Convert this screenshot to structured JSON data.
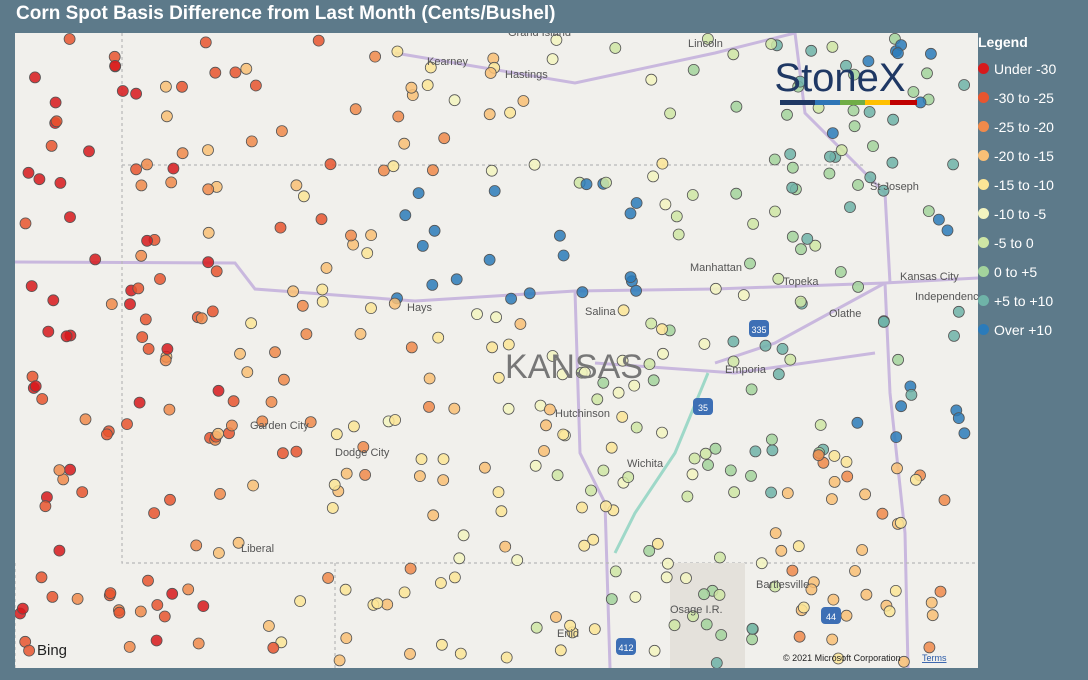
{
  "header": {
    "title": "Corn Spot Basis Difference from Last Month (Cents/Bushel)"
  },
  "legend": {
    "title": "Legend",
    "items": [
      {
        "label": "Under -30",
        "color": "#d7191c"
      },
      {
        "label": "-30 to -25",
        "color": "#e8552f"
      },
      {
        "label": "-25 to -20",
        "color": "#f08a4b"
      },
      {
        "label": "-20 to -15",
        "color": "#f9bf76"
      },
      {
        "label": "-15 to -10",
        "color": "#fbe596"
      },
      {
        "label": "-10 to -5",
        "color": "#f3f4c0"
      },
      {
        "label": "-5 to 0",
        "color": "#cfe6a5"
      },
      {
        "label": "0 to +5",
        "color": "#a3d39c"
      },
      {
        "label": "+5 to +10",
        "color": "#6fb3a8"
      },
      {
        "label": "Over +10",
        "color": "#2b7bba"
      }
    ]
  },
  "map": {
    "labels": [
      "Grand Island",
      "Kearney",
      "Hastings",
      "Lincoln",
      "St Joseph",
      "Kansas City",
      "Independence",
      "Manhattan",
      "Topeka",
      "Olathe",
      "Hays",
      "Salina",
      "KANSAS",
      "Emporia",
      "Garden City",
      "Dodge City",
      "Hutchinson",
      "Wichita",
      "Liberal",
      "Bartlesville",
      "Osage I.R.",
      "Enid"
    ],
    "shields": [
      "335",
      "35",
      "44",
      "412"
    ]
  },
  "logo": "StoneX",
  "footer": {
    "provider": "Bing",
    "copyright": "© 2021 Microsoft Corporation",
    "terms": "Terms"
  }
}
